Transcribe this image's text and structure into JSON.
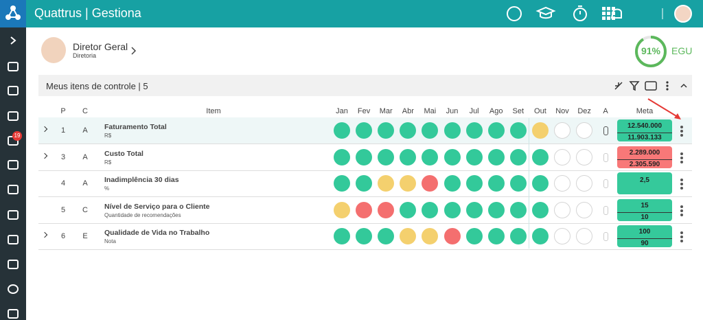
{
  "header": {
    "title": "Quattrus | Gestiona"
  },
  "sidebar": {
    "badge": "19"
  },
  "profile": {
    "name": "Diretor Geral",
    "unit": "Diretoria"
  },
  "score": {
    "value": "91%",
    "label": "EGU"
  },
  "panel": {
    "title": "Meus itens de controle | 5"
  },
  "table": {
    "columns": [
      "P",
      "C",
      "Item",
      "Jan",
      "Fev",
      "Mar",
      "Abr",
      "Mai",
      "Jun",
      "Jul",
      "Ago",
      "Set",
      "Out",
      "Nov",
      "Dez",
      "A",
      "Meta"
    ],
    "rows": [
      {
        "p": "1",
        "c": "A",
        "name": "Faturamento Total",
        "unit": "R$",
        "expandable": true,
        "highlight": true,
        "months": [
          "#33c99a",
          "#33c99a",
          "#33c99a",
          "#33c99a",
          "#33c99a",
          "#33c99a",
          "#33c99a",
          "#33c99a",
          "#33c99a",
          "#f4d06e",
          null,
          null
        ],
        "meta": [
          "12.540.000",
          "11.903.133"
        ],
        "meta_color": "#35c99b"
      },
      {
        "p": "3",
        "c": "A",
        "name": "Custo Total",
        "unit": "R$",
        "expandable": true,
        "highlight": false,
        "months": [
          "#33c99a",
          "#33c99a",
          "#33c99a",
          "#33c99a",
          "#33c99a",
          "#33c99a",
          "#33c99a",
          "#33c99a",
          "#33c99a",
          "#33c99a",
          null,
          null
        ],
        "meta": [
          "2.289.000",
          "2.305.590"
        ],
        "meta_color": "#f87878"
      },
      {
        "p": "4",
        "c": "A",
        "name": "Inadimplência 30 dias",
        "unit": "%",
        "expandable": false,
        "highlight": false,
        "months": [
          "#33c99a",
          "#33c99a",
          "#f4d06e",
          "#f4d06e",
          "#f46f6f",
          "#33c99a",
          "#33c99a",
          "#33c99a",
          "#33c99a",
          "#33c99a",
          null,
          null
        ],
        "meta": [
          "2,5"
        ],
        "meta_color": "#35c99b"
      },
      {
        "p": "5",
        "c": "C",
        "name": "Nível de Serviço para o Cliente",
        "unit": "Quantidade de recomendações",
        "expandable": false,
        "highlight": false,
        "months": [
          "#f4d06e",
          "#f46f6f",
          "#f46f6f",
          "#33c99a",
          "#33c99a",
          "#33c99a",
          "#33c99a",
          "#33c99a",
          "#33c99a",
          "#33c99a",
          null,
          null
        ],
        "meta": [
          "15",
          "10"
        ],
        "meta_color": "#35c99b"
      },
      {
        "p": "6",
        "c": "E",
        "name": "Qualidade de Vida no Trabalho",
        "unit": "Nota",
        "expandable": true,
        "highlight": false,
        "months": [
          "#33c99a",
          "#33c99a",
          "#33c99a",
          "#f4d06e",
          "#f4d06e",
          "#f46f6f",
          "#33c99a",
          "#33c99a",
          "#33c99a",
          "#33c99a",
          null,
          null
        ],
        "meta": [
          "100",
          "90"
        ],
        "meta_color": "#35c99b"
      }
    ]
  }
}
